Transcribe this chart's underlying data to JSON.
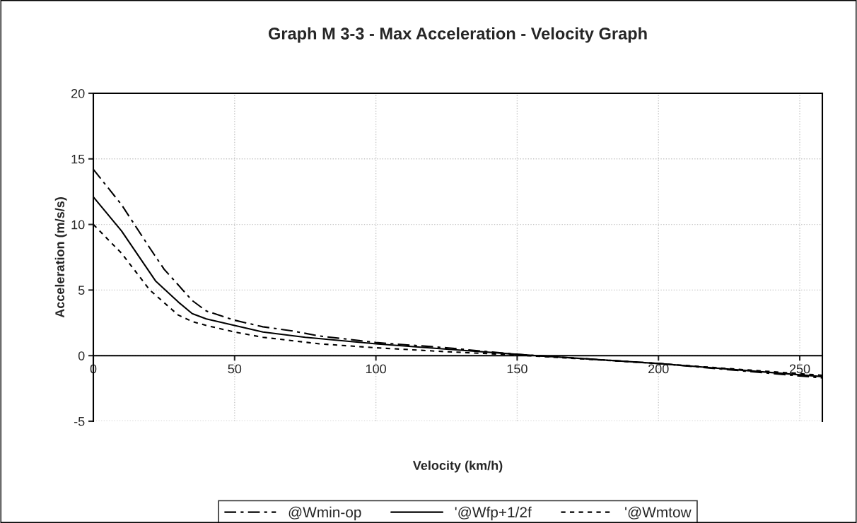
{
  "chart_data": {
    "type": "line",
    "title": "Graph M 3-3 - Max Acceleration - Velocity Graph",
    "xlabel": "Velocity (km/h)",
    "ylabel": "Acceleration (m/s/s)",
    "series": [
      {
        "name": "@Wmin-op",
        "color": "#000000",
        "line_style": "dashed",
        "x": [
          0,
          10,
          20,
          25,
          35,
          40,
          50,
          60,
          70,
          80,
          100,
          125,
          150,
          200,
          258
        ],
        "values": [
          14.2,
          11.5,
          8.2,
          6.6,
          4.2,
          3.4,
          2.7,
          2.2,
          1.9,
          1.5,
          1.0,
          0.6,
          0.1,
          -0.6,
          -1.7
        ]
      },
      {
        "name": "'@Wfp+1/2f",
        "color": "#000000",
        "line_style": "solid",
        "x": [
          0,
          10,
          22,
          30,
          35,
          40,
          50,
          60,
          75,
          100,
          125,
          150,
          200,
          258
        ],
        "values": [
          12.1,
          9.5,
          5.7,
          4.1,
          3.2,
          2.8,
          2.3,
          1.8,
          1.4,
          0.9,
          0.5,
          0.1,
          -0.6,
          -1.6
        ]
      },
      {
        "name": "'@Wmtow",
        "color": "#000000",
        "line_style": "dotted",
        "x": [
          0,
          10,
          20,
          30,
          35,
          40,
          50,
          60,
          80,
          100,
          125,
          150,
          200,
          258
        ],
        "values": [
          10.0,
          7.8,
          5.0,
          3.1,
          2.6,
          2.3,
          1.8,
          1.4,
          0.9,
          0.6,
          0.3,
          0.05,
          -0.6,
          -1.5
        ]
      }
    ],
    "xlim": [
      0,
      258
    ],
    "xticks": [
      0,
      50,
      100,
      150,
      200,
      250
    ],
    "ylim": [
      -5,
      20
    ],
    "yticks": [
      -5,
      0,
      5,
      10,
      15,
      20
    ],
    "grid": true,
    "legend": "bottom"
  }
}
